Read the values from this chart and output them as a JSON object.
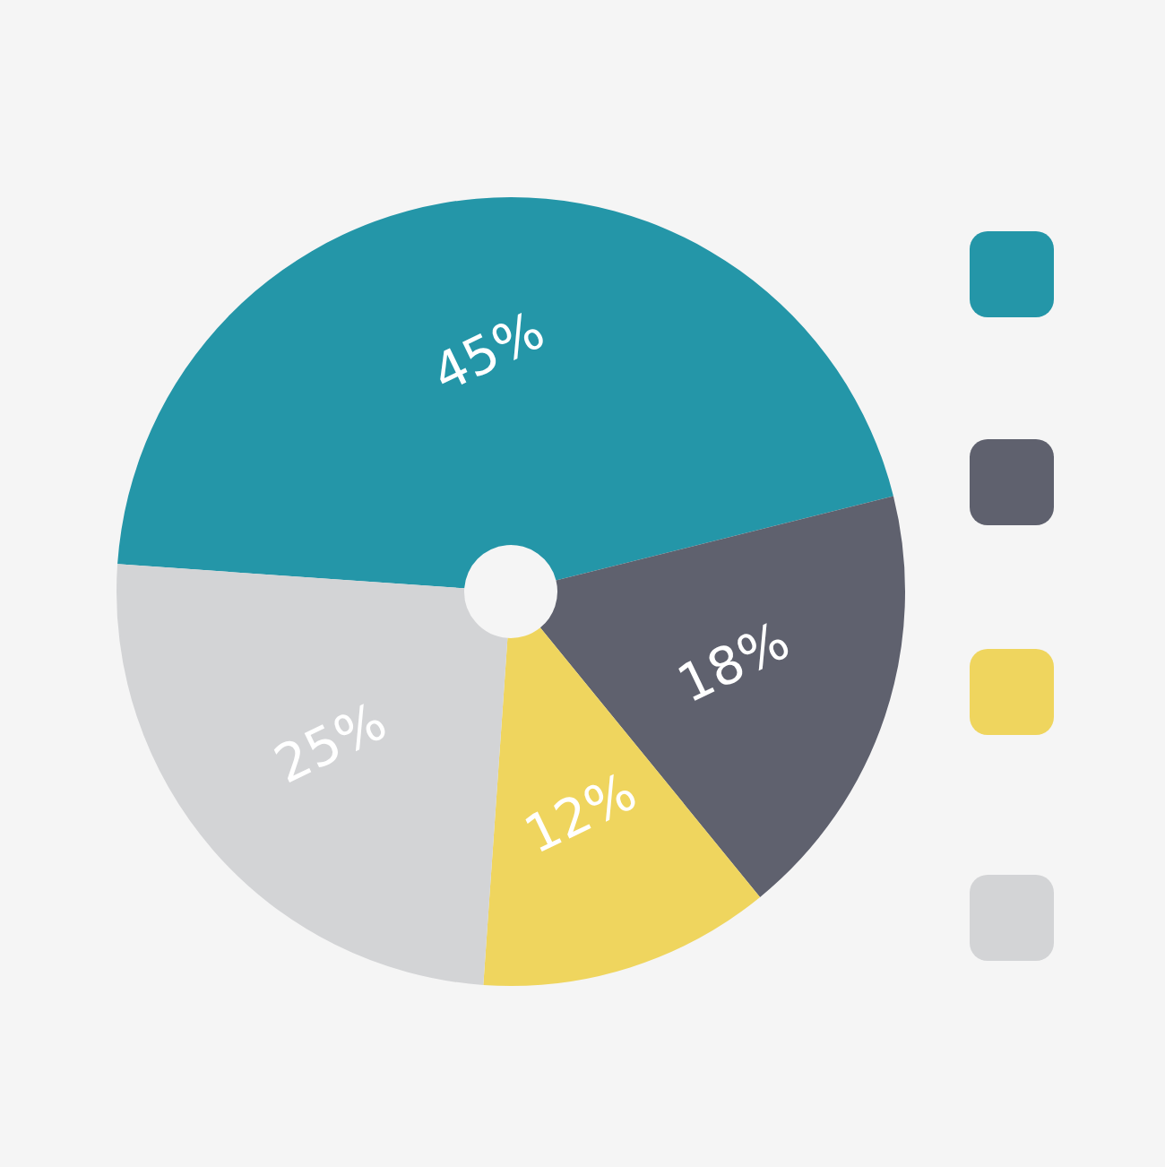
{
  "chart_data": {
    "type": "pie",
    "categories": [
      null,
      null,
      null,
      null
    ],
    "values": [
      45,
      18,
      12,
      25
    ],
    "colors": [
      "#2496a8",
      "#5f616e",
      "#efd55e",
      "#d3d4d6"
    ],
    "value_labels": [
      "45%",
      "18%",
      "12%",
      "25%"
    ]
  }
}
